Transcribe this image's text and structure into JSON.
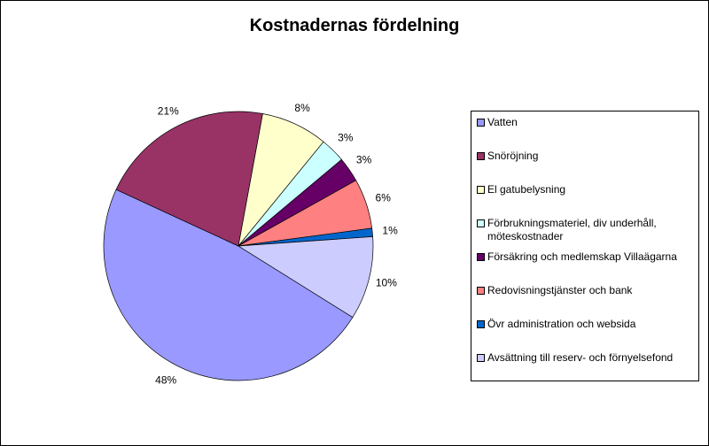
{
  "chart_data": {
    "type": "pie",
    "title": "Kostnadernas fördelning",
    "slices": [
      {
        "label": "Vatten",
        "value": 48,
        "display": "48%",
        "color": "#9999ff"
      },
      {
        "label": "Snöröjning",
        "value": 21,
        "display": "21%",
        "color": "#993366"
      },
      {
        "label": "El gatubelysning",
        "value": 8,
        "display": "8%",
        "color": "#ffffcc"
      },
      {
        "label": "Förbrukningsmateriel, div underhåll, möteskostnader",
        "value": 3,
        "display": "3%",
        "color": "#ccffff"
      },
      {
        "label": "Försäkring och medlemskap Villaägarna",
        "value": 3,
        "display": "3%",
        "color": "#660066"
      },
      {
        "label": "Redovisningstjänster och bank",
        "value": 6,
        "display": "6%",
        "color": "#ff8080"
      },
      {
        "label": "Övr administration och websida",
        "value": 1,
        "display": "1%",
        "color": "#0066cc"
      },
      {
        "label": "Avsättning till reserv- och förnyelsefond",
        "value": 10,
        "display": "10%",
        "color": "#ccccff"
      }
    ],
    "legend_position": "right"
  }
}
